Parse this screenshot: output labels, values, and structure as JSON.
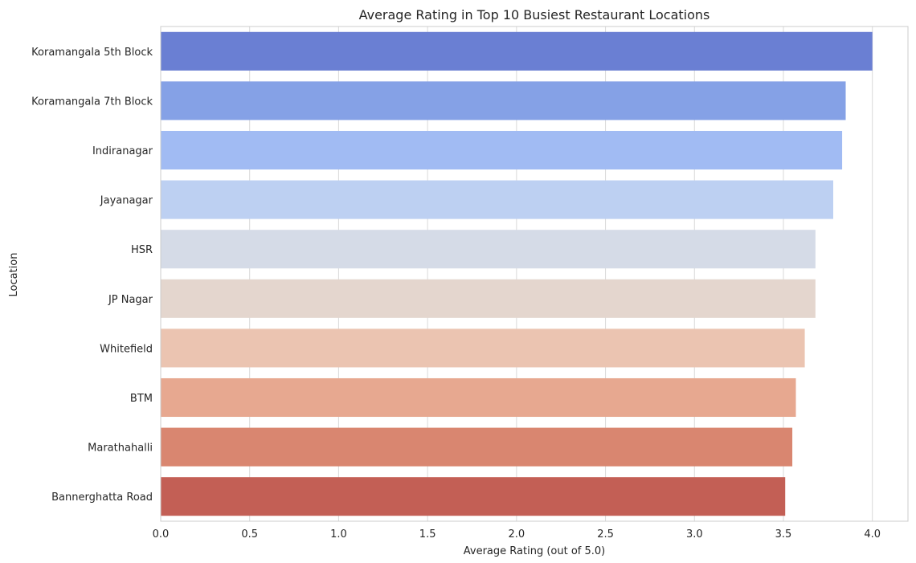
{
  "chart_data": {
    "type": "bar",
    "orientation": "horizontal",
    "title": "Average Rating in Top 10 Busiest Restaurant Locations",
    "xlabel": "Average Rating (out of 5.0)",
    "ylabel": "Location",
    "xlim": [
      0,
      4.2
    ],
    "xticks": [
      0.0,
      0.5,
      1.0,
      1.5,
      2.0,
      2.5,
      3.0,
      3.5,
      4.0
    ],
    "xtick_labels": [
      "0.0",
      "0.5",
      "1.0",
      "1.5",
      "2.0",
      "2.5",
      "3.0",
      "3.5",
      "4.0"
    ],
    "grid": true,
    "categories": [
      "Koramangala 5th Block",
      "Koramangala 7th Block",
      "Indiranagar",
      "Jayanagar",
      "HSR",
      "JP Nagar",
      "Whitefield",
      "BTM",
      "Marathahalli",
      "Bannerghatta Road"
    ],
    "values": [
      4.0,
      3.85,
      3.83,
      3.78,
      3.68,
      3.68,
      3.62,
      3.57,
      3.55,
      3.51
    ],
    "colors": [
      "#6a7fd3",
      "#85a1e6",
      "#a1bbf3",
      "#bdd0f2",
      "#d5dbe7",
      "#e4d6ce",
      "#ebc4b1",
      "#e7a890",
      "#d98670",
      "#c35f55"
    ]
  }
}
